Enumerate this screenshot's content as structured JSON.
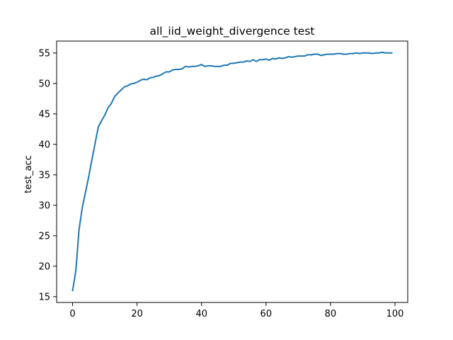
{
  "chart_data": {
    "type": "line",
    "title": "all_iid_weight_divergence test",
    "xlabel": "",
    "ylabel": "test_acc",
    "xlim": [
      -4.95,
      103.95
    ],
    "ylim": [
      14.05,
      56.95
    ],
    "xticks": [
      0,
      20,
      40,
      60,
      80,
      100
    ],
    "yticks": [
      15,
      20,
      25,
      30,
      35,
      40,
      45,
      50,
      55
    ],
    "grid": false,
    "legend": "none",
    "series_color": "#1f77b4",
    "series": [
      {
        "x": [
          0,
          1,
          2,
          3,
          4,
          5,
          6,
          7,
          8,
          9,
          10,
          11,
          12,
          13,
          14,
          15,
          16,
          17,
          18,
          19,
          20,
          21,
          22,
          23,
          24,
          25,
          26,
          27,
          28,
          29,
          30,
          31,
          32,
          33,
          34,
          35,
          36,
          37,
          38,
          39,
          40,
          41,
          42,
          43,
          44,
          45,
          46,
          47,
          48,
          49,
          50,
          51,
          52,
          53,
          54,
          55,
          56,
          57,
          58,
          59,
          60,
          61,
          62,
          63,
          64,
          65,
          66,
          67,
          68,
          69,
          70,
          71,
          72,
          73,
          74,
          75,
          76,
          77,
          78,
          79,
          80,
          81,
          82,
          83,
          84,
          85,
          86,
          87,
          88,
          89,
          90,
          91,
          92,
          93,
          94,
          95,
          96,
          97,
          98,
          99
        ],
        "values": [
          16.0,
          19.2,
          26.0,
          29.6,
          32.1,
          34.7,
          37.5,
          40.2,
          42.9,
          43.9,
          44.8,
          46.0,
          46.7,
          47.8,
          48.4,
          48.9,
          49.4,
          49.6,
          49.9,
          50.0,
          50.2,
          50.5,
          50.7,
          50.6,
          50.9,
          51.0,
          51.2,
          51.3,
          51.6,
          51.9,
          51.9,
          52.2,
          52.3,
          52.3,
          52.4,
          52.8,
          52.7,
          52.8,
          52.8,
          52.9,
          53.1,
          52.8,
          52.9,
          52.9,
          52.8,
          52.8,
          52.8,
          53.0,
          53.0,
          53.3,
          53.3,
          53.4,
          53.5,
          53.5,
          53.7,
          53.6,
          53.9,
          53.6,
          53.9,
          53.9,
          54.0,
          53.8,
          54.1,
          54.0,
          54.2,
          54.1,
          54.2,
          54.4,
          54.3,
          54.4,
          54.5,
          54.5,
          54.5,
          54.7,
          54.7,
          54.8,
          54.8,
          54.6,
          54.7,
          54.8,
          54.8,
          54.8,
          54.9,
          54.9,
          54.8,
          54.8,
          54.9,
          54.9,
          55.0,
          54.9,
          55.0,
          55.0,
          55.0,
          54.9,
          55.0,
          55.0,
          55.1,
          55.0,
          55.0,
          55.0
        ]
      }
    ]
  }
}
